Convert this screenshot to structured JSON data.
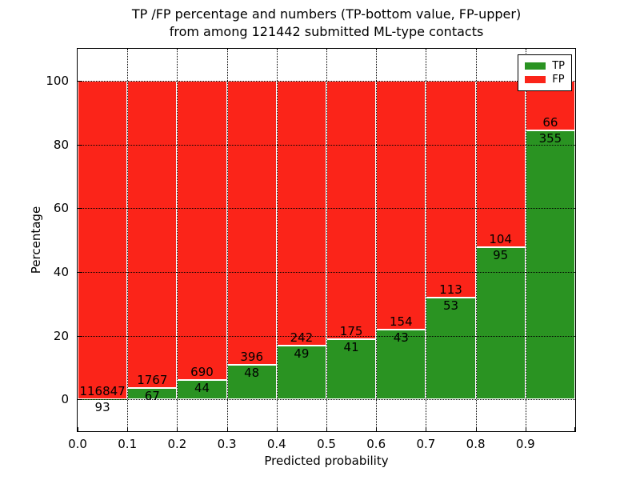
{
  "chart_data": {
    "type": "bar",
    "stacked": true,
    "normalized_to_percent": true,
    "title_line1": "TP /FP percentage and numbers (TP-bottom value, FP-upper)",
    "title_line2": "from among 121442 submitted ML-type contacts",
    "xlabel": "Predicted probability",
    "ylabel": "Percentage",
    "xlim": [
      0.0,
      1.0
    ],
    "ylim": [
      -10,
      110
    ],
    "bin_width": 0.1,
    "bin_edges": [
      0.0,
      0.1,
      0.2,
      0.3,
      0.4,
      0.5,
      0.6,
      0.7,
      0.8,
      0.9,
      1.0
    ],
    "xtick_labels": [
      "0.0",
      "0.1",
      "0.2",
      "0.3",
      "0.4",
      "0.5",
      "0.6",
      "0.7",
      "0.8",
      "0.9"
    ],
    "yticks": [
      0,
      20,
      40,
      60,
      80,
      100
    ],
    "series": [
      {
        "name": "TP",
        "color": "#2a9322",
        "counts": [
          93,
          67,
          44,
          48,
          49,
          41,
          43,
          53,
          95,
          355
        ]
      },
      {
        "name": "FP",
        "color": "#fb2419",
        "counts": [
          116847,
          1767,
          690,
          396,
          242,
          175,
          154,
          113,
          104,
          66
        ]
      }
    ],
    "tp_percent_of_bin": [
      0.08,
      3.65,
      5.99,
      10.81,
      16.84,
      18.98,
      21.83,
      31.93,
      47.74,
      84.32
    ],
    "total_submitted": 121442,
    "grid": {
      "style": "dotted",
      "color": "#000000",
      "on": true
    },
    "bar_edge_color": "#ffffff",
    "legend": {
      "position": "upper right",
      "entries": [
        {
          "label": "TP",
          "color": "#2a9322"
        },
        {
          "label": "FP",
          "color": "#fb2419"
        }
      ]
    }
  }
}
